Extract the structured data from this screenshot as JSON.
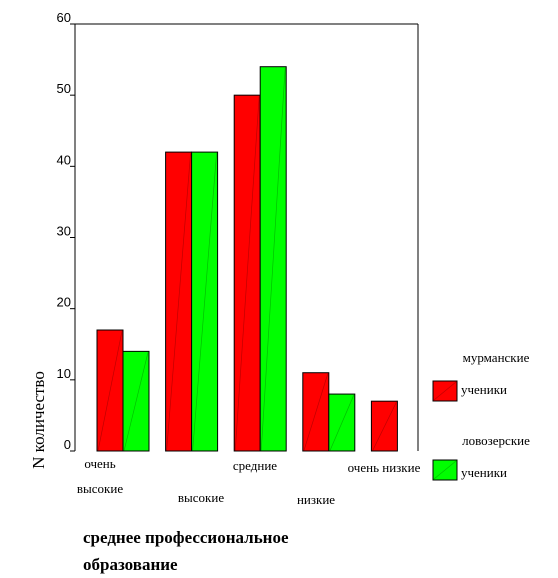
{
  "chart_data": {
    "type": "bar",
    "title": "",
    "xlabel": [
      "среднее профессиональное",
      "образование"
    ],
    "ylabel": "N количество",
    "ylim": [
      0,
      60
    ],
    "yticks": [
      0,
      10,
      20,
      30,
      40,
      50,
      60
    ],
    "grid": false,
    "legend_position": "right",
    "categories": [
      [
        "очень",
        "высокие"
      ],
      [
        "высокие"
      ],
      [
        "средние"
      ],
      [
        "низкие"
      ],
      [
        "очень низкие"
      ]
    ],
    "series": [
      {
        "name": [
          "мурманские",
          "ученики"
        ],
        "color": "#ff0000",
        "values": [
          17,
          42,
          50,
          11,
          7
        ]
      },
      {
        "name": [
          "ловозерские",
          "ученики"
        ],
        "color": "#00ff00",
        "values": [
          14,
          42,
          54,
          8,
          0
        ]
      }
    ]
  }
}
